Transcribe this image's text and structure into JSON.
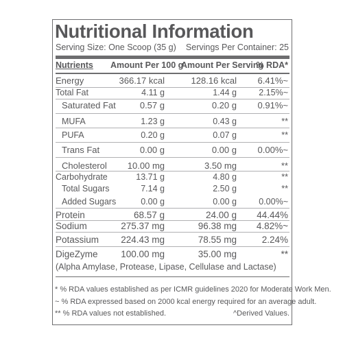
{
  "title": "Nutritional Information",
  "serving_size": "Serving Size: One Scoop (35 g)",
  "servings_per_container": "Servings Per Container: 25",
  "headers": {
    "nutrients": "Nutrients",
    "per100": "Amount Per 100 g",
    "perServing": "Amount Per Serving",
    "rda": "% RDA*"
  },
  "rows": [
    {
      "name": "Energy",
      "per100": "366.17 kcal",
      "perServing": "128.16 kcal",
      "rda": "6.41%~"
    },
    {
      "name": "Total Fat",
      "per100": "4.11 g",
      "perServing": "1.44 g",
      "rda": "2.15%~"
    },
    {
      "name": "Saturated Fat",
      "per100": "0.57 g",
      "perServing": "0.20 g",
      "rda": "0.91%~"
    },
    {
      "name": "MUFA",
      "per100": "1.23 g",
      "perServing": "0.43 g",
      "rda": "**"
    },
    {
      "name": "PUFA",
      "per100": "0.20 g",
      "perServing": "0.07 g",
      "rda": "**"
    },
    {
      "name": "Trans Fat",
      "per100": "0.00 g",
      "perServing": "0.00 g",
      "rda": "0.00%~"
    },
    {
      "name": "Cholesterol",
      "per100": "10.00 mg",
      "perServing": "3.50 mg",
      "rda": "**"
    },
    {
      "name": "Carbohydrate",
      "per100": "13.71 g",
      "perServing": "4.80 g",
      "rda": "**"
    },
    {
      "name": "Total Sugars",
      "per100": "7.14 g",
      "perServing": "2.50 g",
      "rda": "**"
    },
    {
      "name": "Added Sugars",
      "per100": "0.00 g",
      "perServing": "0.00 g",
      "rda": "0.00%~"
    },
    {
      "name": "Protein",
      "per100": "68.57 g",
      "perServing": "24.00 g",
      "rda": "44.44%"
    },
    {
      "name": "Sodium",
      "per100": "275.37 mg",
      "perServing": "96.38 mg",
      "rda": "4.82%~"
    },
    {
      "name": "Potassium",
      "per100": "224.43 mg",
      "perServing": "78.55 mg",
      "rda": "2.24%"
    },
    {
      "name": "DigeZyme",
      "per100": "100.00 mg",
      "perServing": "35.00 mg",
      "rda": "**"
    }
  ],
  "digezyme_detail": "(Alpha Amylase, Protease, Lipase, Cellulase and Lactase)",
  "footnotes": {
    "rda_icmr": "* % RDA values established as per ICMR guidelines 2020 for Moderate Work Men.",
    "rda_energy": "~ % RDA expressed based on 2000 kcal energy required for an average adult.",
    "rda_not_established": "** % RDA values not established.",
    "derived": "^Derived Values."
  }
}
